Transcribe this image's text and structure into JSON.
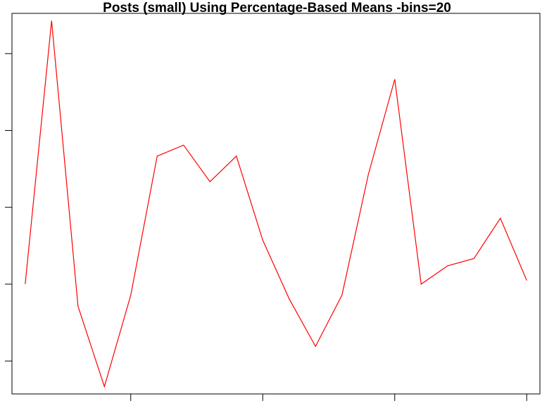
{
  "chart_data": {
    "type": "line",
    "title": "Posts (small) Using Percentage-Based Means -bins=20",
    "xlabel": "",
    "ylabel": "",
    "x": [
      1,
      2,
      3,
      4,
      5,
      6,
      7,
      8,
      9,
      10,
      11,
      12,
      13,
      14,
      15,
      16,
      17,
      18,
      19,
      20
    ],
    "series": [
      {
        "values": [
          0.28,
          1.0,
          0.22,
          0.0,
          0.25,
          0.63,
          0.66,
          0.56,
          0.63,
          0.4,
          0.24,
          0.11,
          0.25,
          0.58,
          0.84,
          0.28,
          0.33,
          0.35,
          0.46,
          0.29
        ],
        "color": "#ff0000"
      }
    ],
    "xlim": [
      0.5,
      20.5
    ],
    "ylim": [
      -0.02,
      1.02
    ],
    "x_ticks": [
      5,
      10,
      15,
      20
    ],
    "y_ticks": [
      0.07,
      0.28,
      0.49,
      0.7,
      0.91
    ],
    "tick_labels_visible": false,
    "grid": false,
    "legend": "none"
  }
}
